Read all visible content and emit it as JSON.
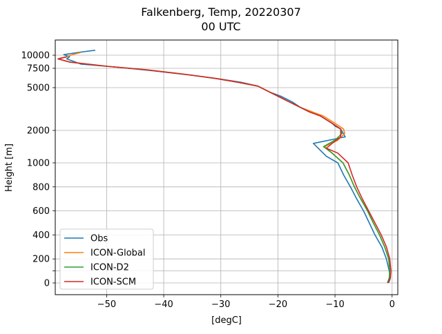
{
  "chart_data": {
    "type": "line",
    "title": "Falkenberg, Temp, 20220307",
    "subtitle": "00 UTC",
    "xlabel": "[degC]",
    "ylabel": "Height [m]",
    "xlim": [
      -59,
      1
    ],
    "x_ticks": [
      -50,
      -40,
      -30,
      -20,
      -10,
      0
    ],
    "x_tick_labels": [
      "−50",
      "−40",
      "−30",
      "−20",
      "−10",
      "0"
    ],
    "y_ticks": [
      {
        "label": "10000",
        "value": 10000
      },
      {
        "label": "7500",
        "value": 7500
      },
      {
        "label": "5000",
        "value": 5000
      },
      {
        "label": "2000",
        "value": 2000
      },
      {
        "label": "1000",
        "value": 1000
      },
      {
        "label": "800",
        "value": 800
      },
      {
        "label": "600",
        "value": 600
      },
      {
        "label": "400",
        "value": 400
      },
      {
        "label": "200",
        "value": 200
      },
      {
        "label": "",
        "value": 100
      },
      {
        "label": "0",
        "value": 0
      }
    ],
    "grid": true,
    "legend_position": "lower-left",
    "series": [
      {
        "name": "Obs",
        "color": "#1f77b4",
        "points": [
          [
            -0.6,
            0
          ],
          [
            -0.3,
            40
          ],
          [
            -0.5,
            100
          ],
          [
            -1,
            200
          ],
          [
            -1.8,
            300
          ],
          [
            -3,
            400
          ],
          [
            -4,
            500
          ],
          [
            -5,
            600
          ],
          [
            -6.2,
            700
          ],
          [
            -7.3,
            800
          ],
          [
            -8.5,
            900
          ],
          [
            -9.5,
            1000
          ],
          [
            -11.5,
            1200
          ],
          [
            -13.8,
            1600
          ],
          [
            -8.2,
            1800
          ],
          [
            -9,
            2100
          ],
          [
            -10,
            2300
          ],
          [
            -10.5,
            2500
          ],
          [
            -12.5,
            3000
          ],
          [
            -14,
            3300
          ],
          [
            -16,
            3600
          ],
          [
            -17.5,
            4000
          ],
          [
            -19.5,
            4400
          ],
          [
            -21.5,
            4700
          ],
          [
            -23.5,
            5200
          ],
          [
            -26.5,
            5700
          ],
          [
            -30,
            6100
          ],
          [
            -35,
            6600
          ],
          [
            -42,
            7200
          ],
          [
            -48,
            7700
          ],
          [
            -54.5,
            8300
          ],
          [
            -57,
            9300
          ],
          [
            -56.5,
            9700
          ],
          [
            -57.5,
            10100
          ],
          [
            -55,
            10500
          ],
          [
            -52,
            10900
          ]
        ]
      },
      {
        "name": "ICON-Global",
        "color": "#ff7f0e",
        "points": [
          [
            -0.8,
            0
          ],
          [
            -0.5,
            40
          ],
          [
            -0.4,
            100
          ],
          [
            -0.6,
            200
          ],
          [
            -1.3,
            300
          ],
          [
            -2.2,
            400
          ],
          [
            -3.3,
            500
          ],
          [
            -4.3,
            600
          ],
          [
            -5.5,
            700
          ],
          [
            -6.6,
            800
          ],
          [
            -7.5,
            900
          ],
          [
            -8.6,
            1000
          ],
          [
            -10.5,
            1300
          ],
          [
            -11.8,
            1500
          ],
          [
            -9.5,
            1700
          ],
          [
            -8.3,
            1900
          ],
          [
            -8.5,
            2100
          ],
          [
            -10,
            2500
          ],
          [
            -12,
            3000
          ],
          [
            -14,
            3300
          ],
          [
            -16,
            3600
          ],
          [
            -18,
            4000
          ],
          [
            -20,
            4400
          ],
          [
            -22,
            4800
          ],
          [
            -23.5,
            5200
          ],
          [
            -27,
            5700
          ],
          [
            -31,
            6200
          ],
          [
            -36,
            6700
          ],
          [
            -43,
            7300
          ],
          [
            -50,
            7900
          ],
          [
            -56.5,
            8700
          ],
          [
            -58.5,
            9300
          ],
          [
            -57,
            9700
          ],
          [
            -56,
            10100
          ],
          [
            -54.5,
            10500
          ]
        ]
      },
      {
        "name": "ICON-D2",
        "color": "#2ca02c",
        "points": [
          [
            -0.8,
            0
          ],
          [
            -0.5,
            40
          ],
          [
            -0.4,
            100
          ],
          [
            -0.6,
            200
          ],
          [
            -1.3,
            300
          ],
          [
            -2.2,
            400
          ],
          [
            -3.3,
            500
          ],
          [
            -4.3,
            600
          ],
          [
            -5.5,
            700
          ],
          [
            -6.6,
            800
          ],
          [
            -7.5,
            900
          ],
          [
            -8.6,
            1000
          ],
          [
            -10.5,
            1300
          ],
          [
            -12,
            1500
          ],
          [
            -10,
            1700
          ],
          [
            -8.8,
            1900
          ],
          [
            -9,
            2100
          ],
          [
            -10.5,
            2500
          ],
          [
            -12.5,
            3000
          ],
          [
            -14.5,
            3300
          ],
          [
            -16,
            3600
          ],
          [
            -18,
            4000
          ],
          [
            -20,
            4400
          ],
          [
            -22,
            4800
          ],
          [
            -23.5,
            5200
          ],
          [
            -27,
            5700
          ],
          [
            -31,
            6200
          ],
          [
            -36,
            6700
          ],
          [
            -43,
            7300
          ],
          [
            -50,
            7900
          ],
          [
            -56.5,
            8700
          ],
          [
            -58.5,
            9300
          ],
          [
            -57,
            9700
          ]
        ]
      },
      {
        "name": "ICON-SCM",
        "color": "#d62728",
        "points": [
          [
            -0.8,
            0
          ],
          [
            -0.3,
            40
          ],
          [
            -0.2,
            100
          ],
          [
            -0.4,
            200
          ],
          [
            -1,
            300
          ],
          [
            -1.9,
            400
          ],
          [
            -3,
            500
          ],
          [
            -4.1,
            600
          ],
          [
            -5.2,
            700
          ],
          [
            -6.2,
            800
          ],
          [
            -7,
            900
          ],
          [
            -7.7,
            1000
          ],
          [
            -9.5,
            1300
          ],
          [
            -11.5,
            1450
          ],
          [
            -10.5,
            1600
          ],
          [
            -9,
            1800
          ],
          [
            -9,
            2100
          ],
          [
            -10.5,
            2500
          ],
          [
            -12.5,
            3000
          ],
          [
            -14.5,
            3300
          ],
          [
            -16,
            3600
          ],
          [
            -18,
            4000
          ],
          [
            -20,
            4400
          ],
          [
            -22,
            4800
          ],
          [
            -23.5,
            5200
          ],
          [
            -27,
            5700
          ],
          [
            -31,
            6200
          ],
          [
            -36,
            6700
          ],
          [
            -43,
            7300
          ],
          [
            -50,
            7900
          ],
          [
            -56.5,
            8700
          ],
          [
            -58.5,
            9300
          ],
          [
            -57,
            9700
          ]
        ]
      }
    ]
  }
}
